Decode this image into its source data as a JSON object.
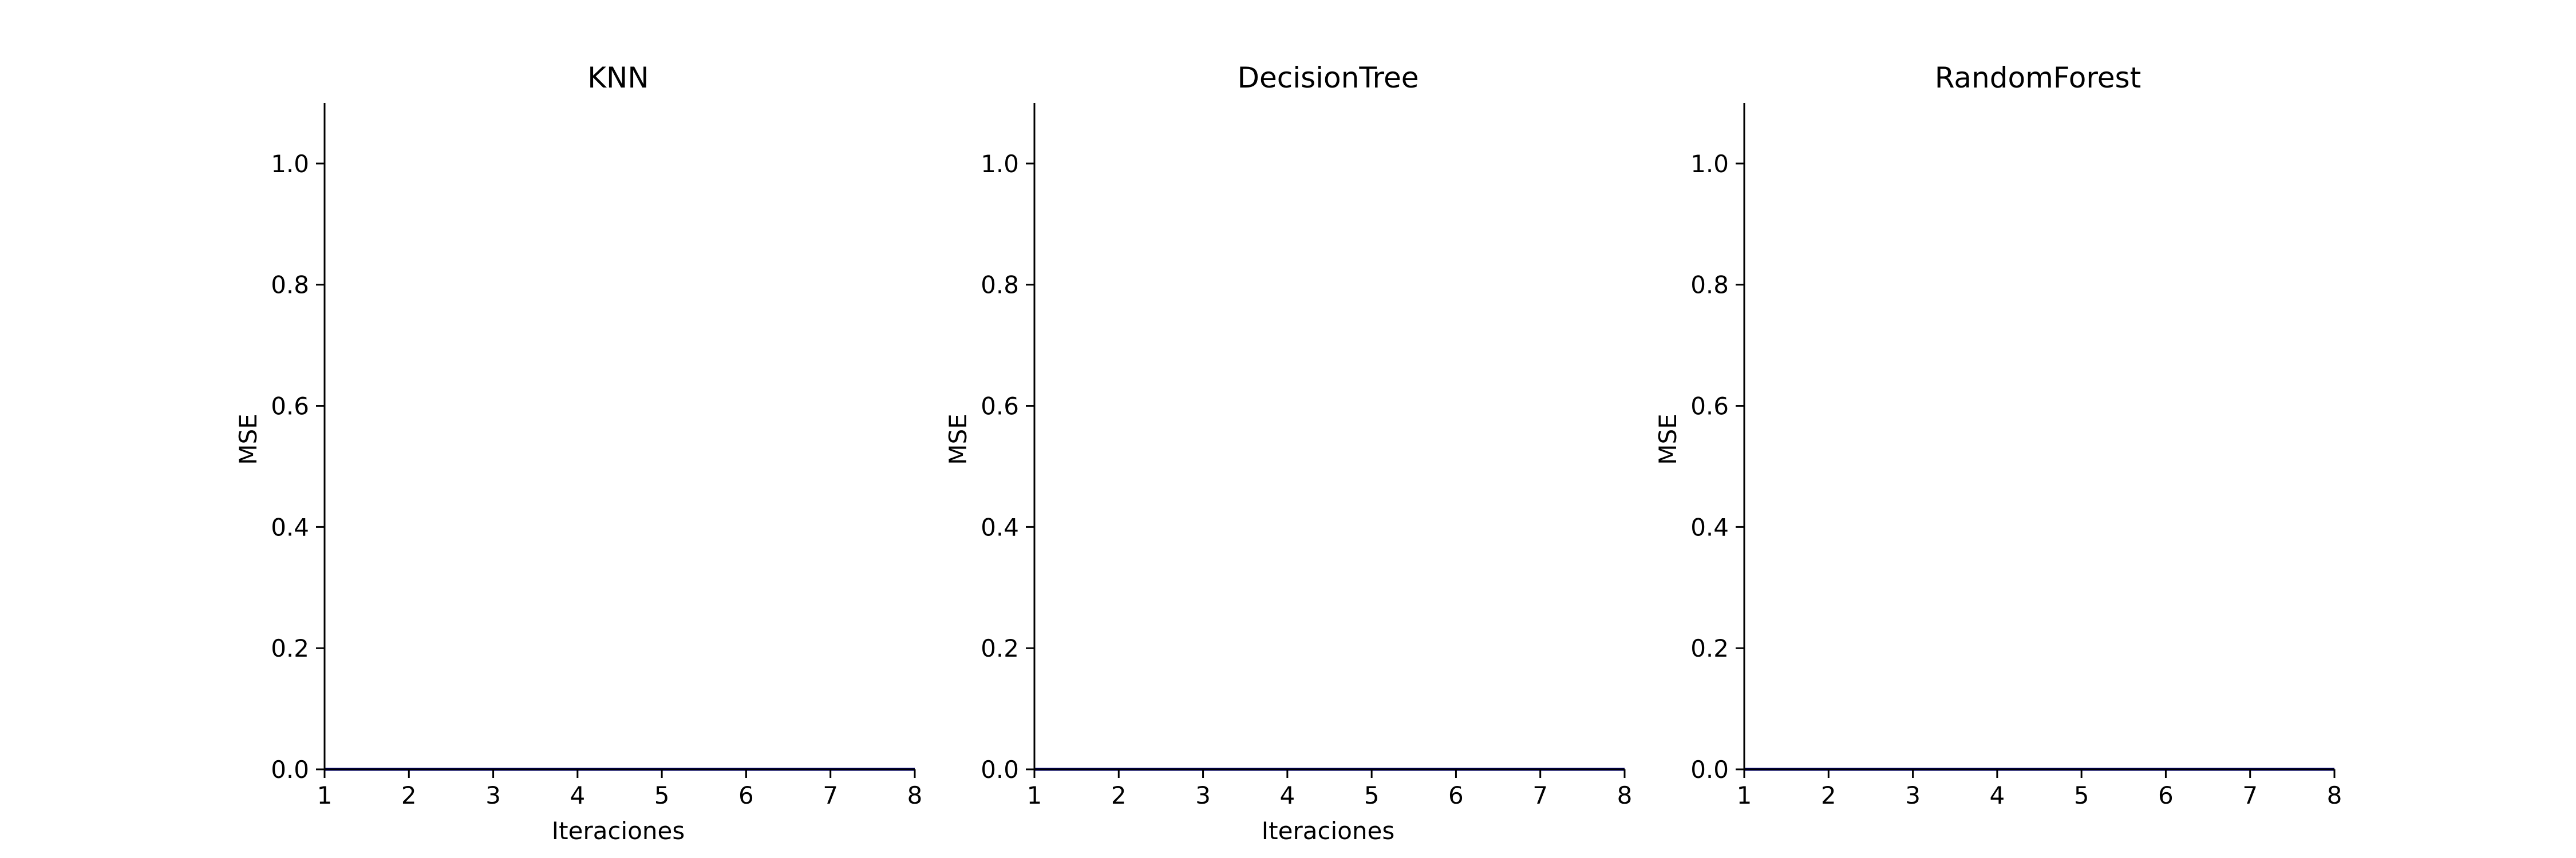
{
  "chart_data": [
    {
      "type": "line",
      "title": "KNN",
      "xlabel": "Iteraciones",
      "ylabel": "MSE",
      "xlim": [
        1,
        8
      ],
      "ylim": [
        0,
        1.1
      ],
      "x_ticks": [
        "1",
        "2",
        "3",
        "4",
        "5",
        "6",
        "7",
        "8"
      ],
      "y_ticks": [
        "0.0",
        "0.2",
        "0.4",
        "0.6",
        "0.8",
        "1.0"
      ],
      "grid": false,
      "series": [
        {
          "color": "#000080",
          "x": [
            1,
            2,
            3,
            4,
            5,
            6,
            7,
            8
          ],
          "values": [
            0,
            0,
            0,
            0,
            0,
            0,
            0,
            0
          ]
        }
      ]
    },
    {
      "type": "line",
      "title": "DecisionTree",
      "xlabel": "Iteraciones",
      "ylabel": "MSE",
      "xlim": [
        1,
        8
      ],
      "ylim": [
        0,
        1.1
      ],
      "x_ticks": [
        "1",
        "2",
        "3",
        "4",
        "5",
        "6",
        "7",
        "8"
      ],
      "y_ticks": [
        "0.0",
        "0.2",
        "0.4",
        "0.6",
        "0.8",
        "1.0"
      ],
      "grid": false,
      "series": [
        {
          "color": "#000080",
          "x": [
            1,
            2,
            3,
            4,
            5,
            6,
            7,
            8
          ],
          "values": [
            0,
            0,
            0,
            0,
            0,
            0,
            0,
            0
          ]
        }
      ]
    },
    {
      "type": "line",
      "title": "RandomForest",
      "xlabel": "",
      "ylabel": "MSE",
      "xlim": [
        1,
        8
      ],
      "ylim": [
        0,
        1.1
      ],
      "x_ticks": [
        "1",
        "2",
        "3",
        "4",
        "5",
        "6",
        "7",
        "8"
      ],
      "y_ticks": [
        "0.0",
        "0.2",
        "0.4",
        "0.6",
        "0.8",
        "1.0"
      ],
      "grid": false,
      "series": [
        {
          "color": "#000080",
          "x": [
            1,
            2,
            3,
            4,
            5,
            6,
            7,
            8
          ],
          "values": [
            0,
            0,
            0,
            0,
            0,
            0,
            0,
            0
          ]
        }
      ]
    }
  ]
}
